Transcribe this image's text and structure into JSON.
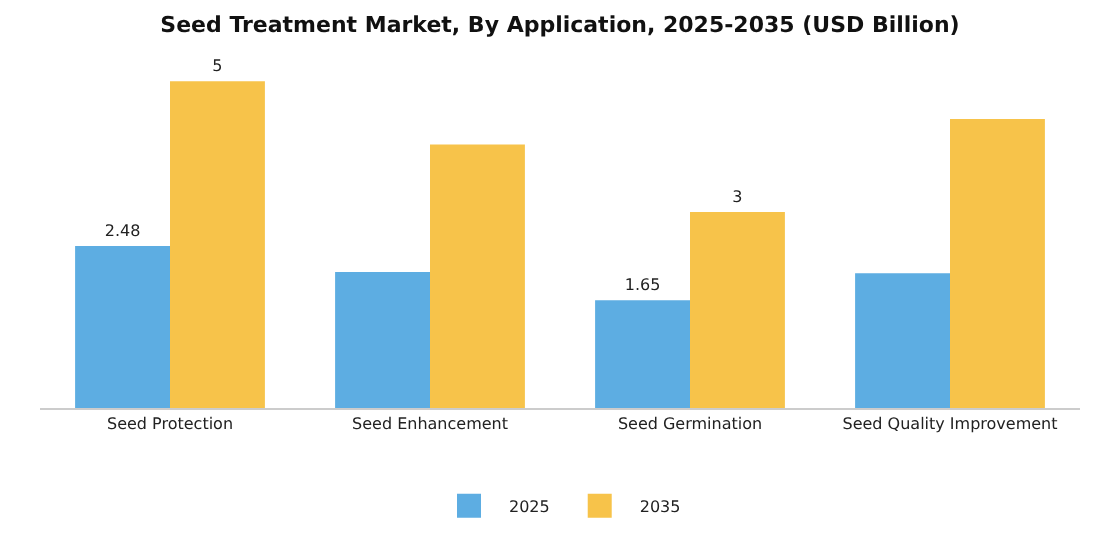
{
  "chart_data": {
    "type": "bar",
    "title": "Seed Treatment Market, By Application, 2025-2035 (USD Billion)",
    "categories": [
      "Seed Protection",
      "Seed Enhancement",
      "Seed Germination",
      "Seed Quality Improvement"
    ],
    "series": [
      {
        "name": "2025",
        "color": "#5dade2",
        "values": [
          2.48,
          2.08,
          1.65,
          2.06
        ],
        "value_labels": [
          "2.48",
          null,
          "1.65",
          null
        ]
      },
      {
        "name": "2035",
        "color": "#f7c34a",
        "values": [
          5,
          4.03,
          3,
          4.42
        ],
        "value_labels": [
          "5",
          null,
          "3",
          null
        ]
      }
    ],
    "legend": "bottom",
    "grid": false
  }
}
